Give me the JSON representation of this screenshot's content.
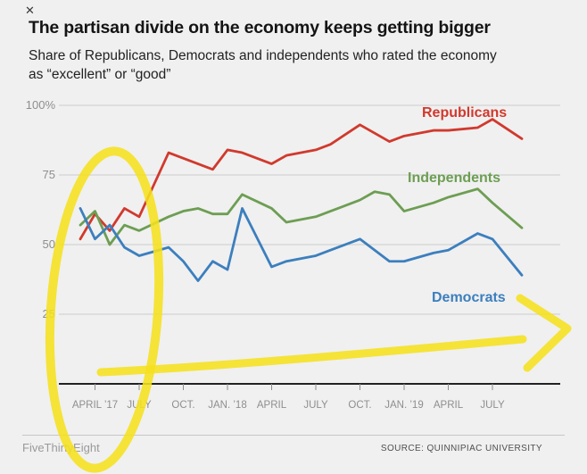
{
  "close_glyph": "✕",
  "header": {
    "title": "The partisan divide on the economy keeps getting bigger",
    "subtitle": "Share of Republicans, Democrats and independents who rated the economy as “excellent” or “good”"
  },
  "footer": {
    "left": "FiveThirtyEight",
    "right": "SOURCE: QUINNIPIAC UNIVERSITY"
  },
  "colors": {
    "republicans": "#d1392d",
    "independents": "#6d9e53",
    "democrats": "#3c7fbe",
    "grid": "#d2d2d2",
    "axis": "#222222",
    "tick_text": "#8e8e8e",
    "background": "#f0f0f0",
    "highlight": "#f5e01e"
  },
  "chart_data": {
    "type": "line",
    "title": "The partisan divide on the economy keeps getting bigger",
    "subtitle": "Share of Republicans, Democrats and independents who rated the economy as “excellent” or “good”",
    "x_unit": "survey month (0 = March 2017)",
    "x": [
      0,
      1,
      2,
      3,
      4,
      6,
      7,
      8,
      9,
      10,
      11,
      13,
      14,
      16,
      17,
      19,
      20,
      21,
      22,
      24,
      25,
      27,
      28,
      30
    ],
    "series": [
      {
        "name": "Republicans",
        "color_key": "republicans",
        "values": [
          52,
          61,
          55,
          63,
          60,
          83,
          81,
          79,
          77,
          84,
          83,
          79,
          82,
          84,
          86,
          93,
          90,
          87,
          89,
          91,
          91,
          92,
          95,
          88
        ]
      },
      {
        "name": "Independents",
        "color_key": "independents",
        "values": [
          57,
          62,
          50,
          57,
          55,
          60,
          62,
          63,
          61,
          61,
          68,
          63,
          58,
          60,
          62,
          66,
          69,
          68,
          62,
          65,
          67,
          70,
          65,
          56
        ]
      },
      {
        "name": "Democrats",
        "color_key": "democrats",
        "values": [
          63,
          52,
          57,
          49,
          46,
          49,
          44,
          37,
          44,
          41,
          63,
          42,
          44,
          46,
          48,
          52,
          48,
          44,
          44,
          47,
          48,
          54,
          52,
          39
        ]
      }
    ],
    "y_ticks": [
      {
        "value": 100,
        "label": "100%"
      },
      {
        "value": 75,
        "label": "75"
      },
      {
        "value": 50,
        "label": "50"
      },
      {
        "value": 25,
        "label": "25"
      }
    ],
    "x_ticks": [
      {
        "month": 1,
        "label": "APRIL ’17"
      },
      {
        "month": 4,
        "label": "JULY"
      },
      {
        "month": 7,
        "label": "OCT."
      },
      {
        "month": 10,
        "label": "JAN. ’18"
      },
      {
        "month": 13,
        "label": "APRIL"
      },
      {
        "month": 16,
        "label": "JULY"
      },
      {
        "month": 19,
        "label": "OCT."
      },
      {
        "month": 22,
        "label": "JAN. ’19"
      },
      {
        "month": 25,
        "label": "APRIL"
      },
      {
        "month": 28,
        "label": "JULY"
      }
    ],
    "ylim": [
      0,
      100
    ],
    "grid": true,
    "legend": "inline-colored-labels"
  },
  "annotations": {
    "color": "#f5e01e",
    "shapes": [
      {
        "name": "highlight-ellipse-annotation",
        "meaning": "hand-drawn highlighter circle around the early-2017 survey points"
      },
      {
        "name": "highlight-underline-annotation",
        "meaning": "hand-drawn highlighter stroke sweeping right beneath the lines"
      },
      {
        "name": "highlight-arrow-annotation",
        "meaning": "hand-drawn highlighter arrowhead pointing right"
      }
    ]
  }
}
